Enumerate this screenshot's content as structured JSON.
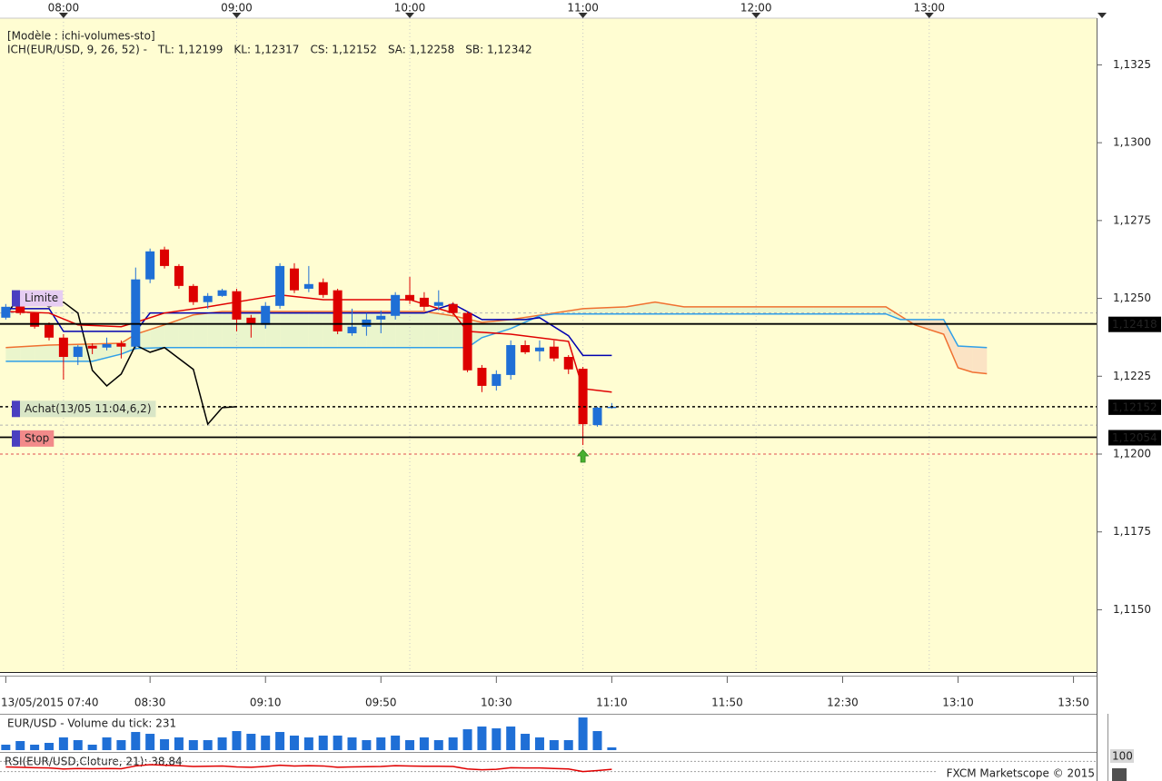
{
  "chart_data": [
    {
      "type": "candlestick",
      "title": "[Modèle : ichi-volumes-sto]",
      "indicator": "ICH(EUR/USD, 9, 26, 52) -",
      "indicator_color": "#e00000",
      "x": [
        "07:40",
        "07:45",
        "07:50",
        "07:55",
        "08:00",
        "08:05",
        "08:10",
        "08:15",
        "08:20",
        "08:25",
        "08:30",
        "08:35",
        "08:40",
        "08:45",
        "08:50",
        "08:55",
        "09:00",
        "09:05",
        "09:10",
        "09:15",
        "09:20",
        "09:25",
        "09:30",
        "09:35",
        "09:40",
        "09:45",
        "09:50",
        "09:55",
        "10:00",
        "10:05",
        "10:10",
        "10:15",
        "10:20",
        "10:25",
        "10:30",
        "10:35",
        "10:40",
        "10:45",
        "10:50",
        "10:55",
        "11:00",
        "11:05",
        "11:10"
      ],
      "open": [
        1.12438,
        1.12476,
        1.12453,
        1.12415,
        1.12374,
        1.12312,
        1.12348,
        1.12342,
        1.12356,
        1.12345,
        1.12561,
        1.12657,
        1.12604,
        1.1254,
        1.12488,
        1.12508,
        1.12523,
        1.12438,
        1.12415,
        1.12476,
        1.12596,
        1.12531,
        1.12552,
        1.12526,
        1.12388,
        1.12409,
        1.12432,
        1.12444,
        1.12511,
        1.12502,
        1.12476,
        1.12482,
        1.12453,
        1.12277,
        1.12219,
        1.12254,
        1.1235,
        1.1233,
        1.12345,
        1.12312,
        1.12274,
        1.12093,
        1.12149
      ],
      "high": [
        1.12482,
        1.12485,
        1.12456,
        1.12423,
        1.12385,
        1.1235,
        1.12356,
        1.12374,
        1.12365,
        1.12599,
        1.1266,
        1.12666,
        1.1261,
        1.12546,
        1.12517,
        1.12531,
        1.12531,
        1.12447,
        1.12488,
        1.12613,
        1.12613,
        1.12604,
        1.12564,
        1.12531,
        1.12467,
        1.12453,
        1.12461,
        1.1252,
        1.12569,
        1.1252,
        1.12526,
        1.12488,
        1.12458,
        1.12286,
        1.12269,
        1.12365,
        1.12365,
        1.12365,
        1.12365,
        1.12318,
        1.1228,
        1.12152,
        1.12164
      ],
      "low": [
        1.12432,
        1.12447,
        1.12403,
        1.12365,
        1.12239,
        1.12286,
        1.12321,
        1.12333,
        1.12307,
        1.12336,
        1.12549,
        1.12596,
        1.12531,
        1.12479,
        1.12467,
        1.12505,
        1.12394,
        1.12374,
        1.12403,
        1.12467,
        1.12517,
        1.1252,
        1.12502,
        1.12385,
        1.1238,
        1.1238,
        1.12388,
        1.12432,
        1.12482,
        1.12461,
        1.12461,
        1.12447,
        1.12263,
        1.12199,
        1.12204,
        1.12239,
        1.12321,
        1.12298,
        1.12298,
        1.12257,
        1.12029,
        1.12088,
        1.12146
      ],
      "close": [
        1.12473,
        1.12453,
        1.12409,
        1.12374,
        1.12312,
        1.12345,
        1.12339,
        1.12353,
        1.12345,
        1.12561,
        1.12651,
        1.12604,
        1.1254,
        1.12488,
        1.12508,
        1.12526,
        1.12432,
        1.12418,
        1.12476,
        1.12604,
        1.12526,
        1.12546,
        1.12511,
        1.12394,
        1.12409,
        1.12432,
        1.12444,
        1.12511,
        1.12493,
        1.12473,
        1.12488,
        1.12453,
        1.12269,
        1.12219,
        1.12257,
        1.1235,
        1.12327,
        1.12342,
        1.12307,
        1.12272,
        1.12096,
        1.12149,
        1.12152
      ],
      "up_color": "#1f6fd6",
      "down_color": "#dd0000",
      "series": [
        {
          "name": "TL: 1,12199",
          "color": "#e00000",
          "x": [
            "07:40",
            "07:55",
            "08:05",
            "08:20",
            "08:25",
            "08:35",
            "08:50",
            "09:05",
            "09:15",
            "09:30",
            "10:00",
            "10:10",
            "10:15",
            "10:20",
            "10:35",
            "10:55",
            "11:00",
            "11:10"
          ],
          "values": [
            1.12458,
            1.12453,
            1.12415,
            1.12409,
            1.12423,
            1.12453,
            1.12473,
            1.12496,
            1.12511,
            1.12496,
            1.12496,
            1.12467,
            1.12453,
            1.12394,
            1.12385,
            1.12362,
            1.1221,
            1.12199
          ]
        },
        {
          "name": "KL: 1,12317",
          "color": "#0000b0",
          "x": [
            "07:40",
            "07:55",
            "08:00",
            "08:25",
            "08:30",
            "10:05",
            "10:15",
            "10:25",
            "10:40",
            "10:45",
            "10:55",
            "11:00",
            "11:10"
          ],
          "values": [
            1.12467,
            1.12467,
            1.12394,
            1.12394,
            1.12453,
            1.12453,
            1.12482,
            1.12432,
            1.12432,
            1.12438,
            1.1238,
            1.12317,
            1.12317
          ]
        },
        {
          "name": "CS: 1,12152",
          "color": "#000000",
          "x": [
            "07:40",
            "07:45",
            "07:50",
            "07:55",
            "08:00",
            "08:05",
            "08:10",
            "08:15",
            "08:20",
            "08:25",
            "08:30",
            "08:35",
            "08:40",
            "08:45",
            "08:50",
            "08:55",
            "09:00"
          ],
          "values": [
            1.12444,
            1.12511,
            1.12493,
            1.12473,
            1.12488,
            1.12453,
            1.12269,
            1.12219,
            1.12257,
            1.1235,
            1.12327,
            1.12342,
            1.12307,
            1.12272,
            1.12096,
            1.12149,
            1.12152
          ]
        },
        {
          "name": "SA: 1,12258",
          "color": "#f07030",
          "x": [
            "07:40",
            "07:55",
            "08:20",
            "08:25",
            "08:35",
            "08:45",
            "08:55",
            "10:05",
            "10:15",
            "10:25",
            "10:35",
            "10:50",
            "11:00",
            "11:15",
            "11:25",
            "11:35",
            "12:45",
            "12:55",
            "13:05",
            "13:10",
            "13:15",
            "13:20"
          ],
          "values": [
            1.12342,
            1.1235,
            1.12356,
            1.12385,
            1.12415,
            1.12447,
            1.12458,
            1.12458,
            1.12444,
            1.12423,
            1.12432,
            1.12453,
            1.12467,
            1.12473,
            1.12488,
            1.12473,
            1.12473,
            1.12415,
            1.12385,
            1.12277,
            1.12263,
            1.12258
          ]
        },
        {
          "name": "SB: 1,12342",
          "color": "#30a0e8",
          "x": [
            "07:40",
            "08:10",
            "08:20",
            "08:25",
            "08:35",
            "10:20",
            "10:25",
            "10:35",
            "10:45",
            "10:50",
            "12:45",
            "12:50",
            "13:05",
            "13:10",
            "13:20"
          ],
          "values": [
            1.12298,
            1.12298,
            1.12321,
            1.12339,
            1.12342,
            1.12342,
            1.12374,
            1.12403,
            1.12444,
            1.1245,
            1.1245,
            1.12432,
            1.12432,
            1.12347,
            1.12342
          ]
        }
      ],
      "xlim": [
        "07:38",
        "13:58"
      ],
      "xticks": [
        "08:00",
        "09:00",
        "10:00",
        "11:00",
        "12:00",
        "13:00"
      ],
      "x2ticks": [
        {
          "value": "07:40",
          "label": "13/05/2015 07:40"
        },
        "08:30",
        "09:10",
        "09:50",
        "10:30",
        "11:10",
        "11:50",
        "12:30",
        "13:10",
        "13:50"
      ],
      "grid": true,
      "ylim": [
        1.113,
        1.134
      ],
      "yticks": [
        {
          "value": 1.115,
          "label": "1,1150"
        },
        {
          "value": 1.1175,
          "label": "1,1175"
        },
        {
          "value": 1.12,
          "label": "1,1200"
        },
        {
          "value": 1.1225,
          "label": "1,1225"
        },
        {
          "value": 1.125,
          "label": "1,1250"
        },
        {
          "value": 1.1275,
          "label": "1,1275"
        },
        {
          "value": 1.13,
          "label": "1,1300"
        },
        {
          "value": 1.1325,
          "label": "1,1325"
        }
      ],
      "levels": [
        {
          "value": 1.12418,
          "label": "1,12418",
          "style": "solid",
          "text_color": "#ffffff"
        },
        {
          "value": 1.12152,
          "label": "1,12152",
          "style": "dashed",
          "text_color": "#33ff33"
        },
        {
          "value": 1.12054,
          "label": "1,12054",
          "style": "solid",
          "text_color": "#ffffff"
        }
      ],
      "guides": [
        {
          "value": 1.12453,
          "color": "#b4b4b4"
        },
        {
          "value": 1.12093,
          "color": "#b4b4b4"
        },
        {
          "value": 1.12,
          "color": "#e05050"
        }
      ],
      "orders": [
        {
          "label": "Limite",
          "value": 1.125,
          "color": "#e6cdf2",
          "text_color": "#a77fd0"
        },
        {
          "label": "Achat(13/05 11:04,6,2)",
          "value": 1.12145,
          "color": "#d9e6c6",
          "text_color": "#8c8c8c"
        },
        {
          "label": "Stop",
          "value": 1.1205,
          "color": "#f28a8a",
          "text_color": "#b02020"
        }
      ],
      "signal": {
        "x": "11:00",
        "value": 1.11994,
        "color": "#48b030"
      }
    },
    {
      "type": "bar",
      "title": "EUR/USD - Volume du tick: 231",
      "x": [
        "07:40",
        "07:45",
        "07:50",
        "07:55",
        "08:00",
        "08:05",
        "08:10",
        "08:15",
        "08:20",
        "08:25",
        "08:30",
        "08:35",
        "08:40",
        "08:45",
        "08:50",
        "08:55",
        "09:00",
        "09:05",
        "09:10",
        "09:15",
        "09:20",
        "09:25",
        "09:30",
        "09:35",
        "09:40",
        "09:45",
        "09:50",
        "09:55",
        "10:00",
        "10:05",
        "10:10",
        "10:15",
        "10:20",
        "10:25",
        "10:30",
        "10:35",
        "10:40",
        "10:45",
        "10:50",
        "10:55",
        "11:00",
        "11:05",
        "11:10"
      ],
      "values": [
        462,
        770,
        462,
        616,
        1078,
        847,
        462,
        1078,
        847,
        1540,
        1386,
        924,
        1078,
        847,
        847,
        1078,
        1617,
        1386,
        1232,
        1540,
        1232,
        1078,
        1232,
        1232,
        1078,
        847,
        1078,
        1232,
        847,
        1078,
        847,
        1078,
        1771,
        2002,
        1848,
        2002,
        1386,
        1078,
        847,
        847,
        2772,
        1617,
        231
      ],
      "color": "#1f6fd6",
      "ylim": [
        0,
        2930
      ]
    },
    {
      "type": "line",
      "title": "RSI(EUR/USD,Cloture, 21): 38,84",
      "x": [
        "07:40",
        "07:45",
        "07:50",
        "07:55",
        "08:00",
        "08:05",
        "08:10",
        "08:15",
        "08:20",
        "08:25",
        "08:30",
        "08:35",
        "08:40",
        "08:45",
        "08:50",
        "08:55",
        "09:00",
        "09:05",
        "09:10",
        "09:15",
        "09:20",
        "09:25",
        "09:30",
        "09:35",
        "09:40",
        "09:45",
        "09:50",
        "09:55",
        "10:00",
        "10:05",
        "10:10",
        "10:15",
        "10:20",
        "10:25",
        "10:30",
        "10:35",
        "10:40",
        "10:45",
        "10:50",
        "10:55",
        "11:00",
        "11:05",
        "11:10"
      ],
      "values": [
        48,
        47,
        45,
        44,
        40,
        42,
        41,
        42,
        41,
        52,
        57,
        55,
        53,
        50,
        51,
        52,
        48,
        47,
        50,
        55,
        52,
        53,
        52,
        47,
        48,
        49,
        50,
        53,
        52,
        51,
        51,
        50,
        40,
        37,
        39,
        45,
        44,
        44,
        42,
        40,
        30,
        34,
        38.84
      ],
      "color": "#e00000",
      "ylim": [
        0,
        100
      ],
      "yticks": [
        100
      ],
      "guides": [
        70,
        30
      ]
    }
  ],
  "footer": "FXCM Marketscope © 2015"
}
